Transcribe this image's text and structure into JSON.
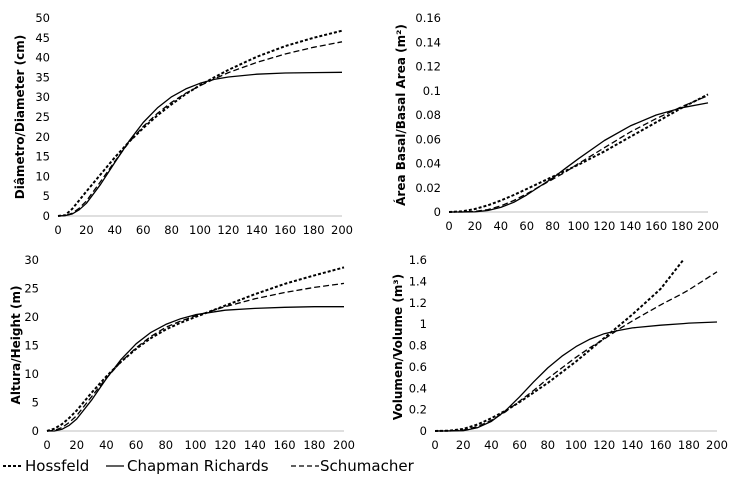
{
  "legend": [
    {
      "label": "Hossfeld",
      "style": "dotted"
    },
    {
      "label": "Chapman Richards",
      "style": "solid"
    },
    {
      "label": "Schumacher",
      "style": "dashed"
    }
  ],
  "chart_data": [
    {
      "type": "line",
      "ylabel": "Diâmetro/Diameter (cm)",
      "xlim": [
        0,
        200
      ],
      "ylim": [
        0,
        50
      ],
      "xticks": [
        0,
        20,
        40,
        60,
        80,
        100,
        120,
        140,
        160,
        180,
        200
      ],
      "yticks": [
        0,
        5,
        10,
        15,
        20,
        25,
        30,
        35,
        40,
        45,
        50
      ],
      "x": [
        0,
        5,
        10,
        15,
        20,
        30,
        40,
        50,
        60,
        70,
        80,
        90,
        100,
        110,
        120,
        140,
        160,
        180,
        200
      ],
      "series": [
        {
          "name": "Hossfeld",
          "values": [
            0,
            0.2,
            1.8,
            4.0,
            6.2,
            10.5,
            14.8,
            18.7,
            22.2,
            25.4,
            28.2,
            30.8,
            33.0,
            35.0,
            36.9,
            40.2,
            42.9,
            45.0,
            46.8
          ]
        },
        {
          "name": "Chapman Richards",
          "values": [
            0,
            0.1,
            0.5,
            1.6,
            3.2,
            8.0,
            13.5,
            18.9,
            23.6,
            27.3,
            30.1,
            32.1,
            33.5,
            34.5,
            35.1,
            35.8,
            36.1,
            36.2,
            36.3
          ]
        },
        {
          "name": "Schumacher",
          "values": [
            0,
            0.1,
            0.7,
            2.0,
            3.8,
            8.7,
            13.8,
            18.6,
            22.6,
            25.9,
            28.7,
            31.0,
            32.9,
            34.6,
            36.2,
            38.8,
            40.9,
            42.6,
            44.0
          ]
        }
      ]
    },
    {
      "type": "line",
      "ylabel": "Área Basal/Basal Area (m²)",
      "xlim": [
        0,
        200
      ],
      "ylim": [
        0,
        0.16
      ],
      "xticks": [
        0,
        20,
        40,
        60,
        80,
        100,
        120,
        140,
        160,
        180,
        200
      ],
      "yticks": [
        0,
        0.02,
        0.04,
        0.06,
        0.08,
        0.1,
        0.12,
        0.14,
        0.16
      ],
      "x": [
        0,
        10,
        20,
        30,
        40,
        50,
        60,
        70,
        80,
        90,
        100,
        120,
        140,
        160,
        180,
        200
      ],
      "series": [
        {
          "name": "Hossfeld",
          "values": [
            0,
            0.0005,
            0.0025,
            0.0055,
            0.0095,
            0.014,
            0.019,
            0.024,
            0.029,
            0.034,
            0.039,
            0.05,
            0.062,
            0.074,
            0.086,
            0.097
          ]
        },
        {
          "name": "Chapman Richards",
          "values": [
            0,
            0,
            0.0002,
            0.0012,
            0.0038,
            0.008,
            0.014,
            0.021,
            0.028,
            0.036,
            0.044,
            0.059,
            0.071,
            0.08,
            0.086,
            0.09
          ]
        },
        {
          "name": "Schumacher",
          "values": [
            0,
            0,
            0.0005,
            0.002,
            0.005,
            0.0095,
            0.015,
            0.021,
            0.027,
            0.033,
            0.04,
            0.053,
            0.066,
            0.077,
            0.087,
            0.096
          ]
        }
      ]
    },
    {
      "type": "line",
      "ylabel": "Altura/Height (m)",
      "xlim": [
        0,
        200
      ],
      "ylim": [
        0,
        30
      ],
      "xticks": [
        0,
        20,
        40,
        60,
        80,
        100,
        120,
        140,
        160,
        180,
        200
      ],
      "yticks": [
        0,
        5,
        10,
        15,
        20,
        25,
        30
      ],
      "x": [
        0,
        5,
        10,
        15,
        20,
        30,
        40,
        50,
        60,
        70,
        80,
        90,
        100,
        120,
        140,
        160,
        180,
        200
      ],
      "series": [
        {
          "name": "Hossfeld",
          "values": [
            0,
            0.4,
            1.2,
            2.3,
            3.6,
            6.7,
            9.6,
            12.2,
            14.4,
            16.3,
            17.8,
            19.0,
            20.0,
            22.0,
            24.0,
            25.8,
            27.3,
            28.7
          ]
        },
        {
          "name": "Chapman Richards",
          "values": [
            0,
            0,
            0.3,
            1.0,
            2.1,
            5.4,
            9.2,
            12.6,
            15.3,
            17.3,
            18.7,
            19.7,
            20.4,
            21.2,
            21.5,
            21.7,
            21.8,
            21.8
          ]
        },
        {
          "name": "Schumacher",
          "values": [
            0,
            0.1,
            0.6,
            1.5,
            2.7,
            6.0,
            9.3,
            12.2,
            14.6,
            16.6,
            18.2,
            19.3,
            20.2,
            21.8,
            23.2,
            24.3,
            25.2,
            25.9
          ]
        }
      ]
    },
    {
      "type": "line",
      "ylabel": "Volumen/Volume (m³)",
      "xlim": [
        0,
        200
      ],
      "ylim": [
        0,
        1.6
      ],
      "xticks": [
        0,
        20,
        40,
        60,
        80,
        100,
        120,
        140,
        160,
        180,
        200
      ],
      "yticks": [
        0,
        0.2,
        0.4,
        0.6,
        0.8,
        1,
        1.2,
        1.4,
        1.6
      ],
      "x": [
        0,
        10,
        20,
        30,
        40,
        50,
        60,
        70,
        80,
        90,
        100,
        110,
        120,
        130,
        140,
        160,
        176,
        180,
        200
      ],
      "series": [
        {
          "name": "Hossfeld",
          "values": [
            0,
            0.003,
            0.02,
            0.06,
            0.12,
            0.19,
            0.27,
            0.36,
            0.45,
            0.55,
            0.65,
            0.76,
            0.87,
            0.98,
            1.09,
            1.33,
            1.6,
            null,
            null
          ]
        },
        {
          "name": "Chapman Richards",
          "values": [
            0,
            0,
            0.003,
            0.03,
            0.09,
            0.19,
            0.32,
            0.46,
            0.59,
            0.7,
            0.79,
            0.86,
            0.91,
            0.94,
            0.965,
            0.99,
            1.005,
            1.01,
            1.02
          ]
        },
        {
          "name": "Schumacher",
          "values": [
            0,
            0.0005,
            0.008,
            0.04,
            0.1,
            0.18,
            0.28,
            0.38,
            0.49,
            0.59,
            0.69,
            0.78,
            0.86,
            0.95,
            1.03,
            1.18,
            1.29,
            1.32,
            1.49
          ]
        }
      ]
    }
  ]
}
